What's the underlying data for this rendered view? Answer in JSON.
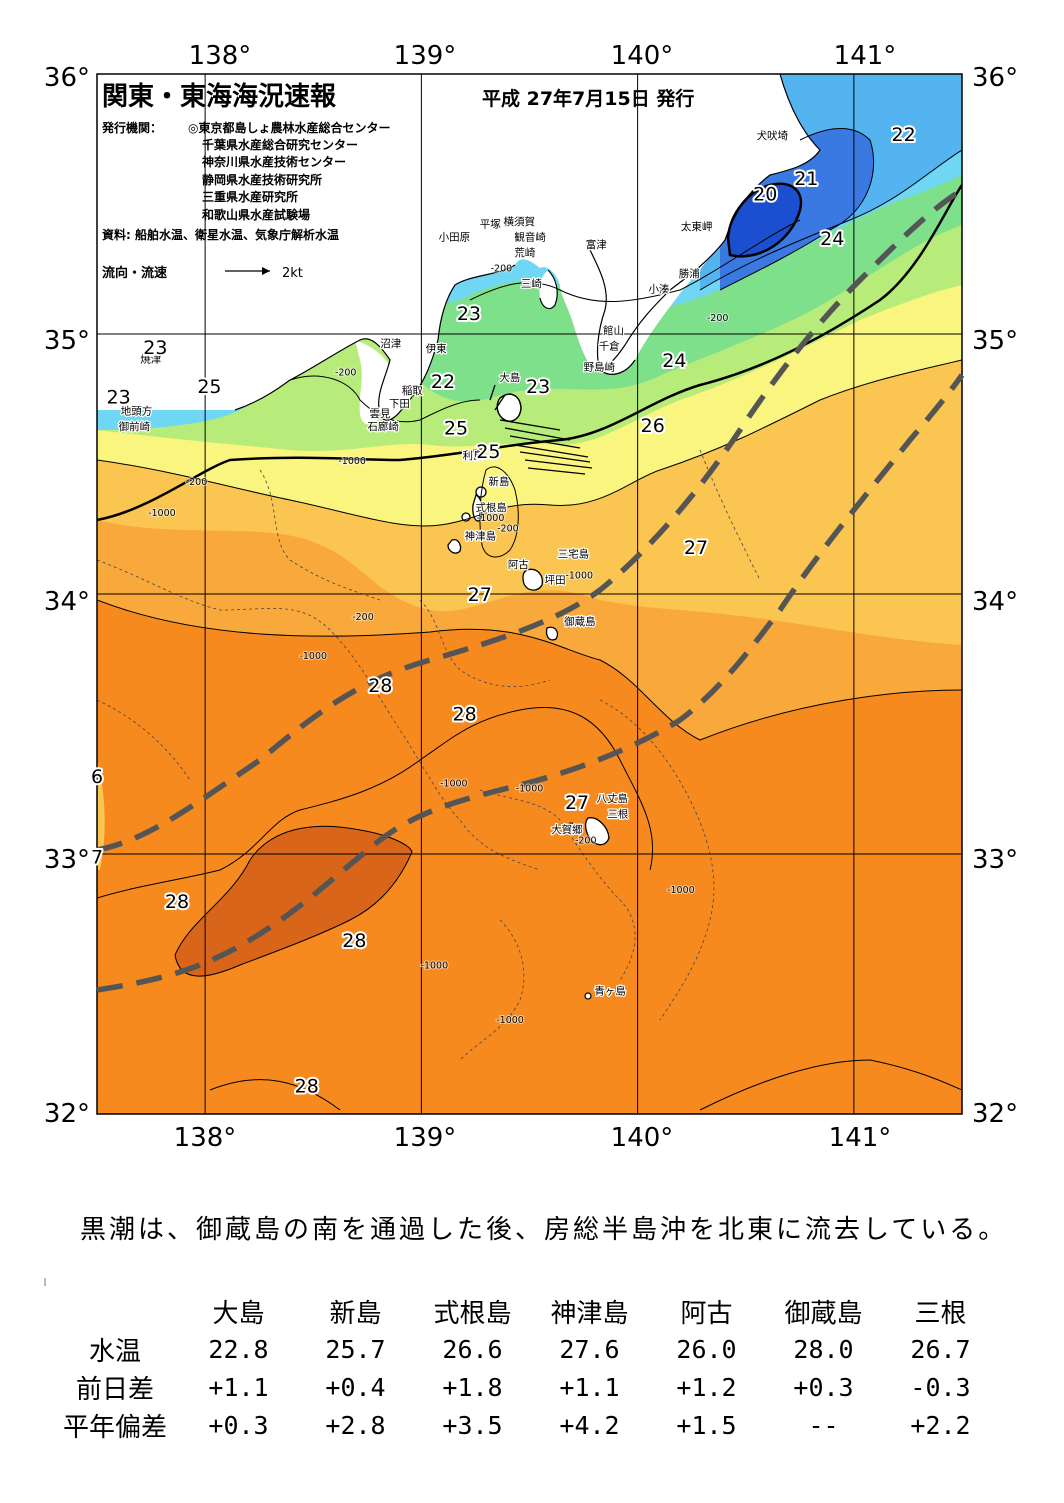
{
  "title": "関東・東海海況速報",
  "issue_date": "平成 27年7月15日 発行",
  "issuers_label": "発行機関：",
  "issuers": [
    "◎東京都島しょ農林水産総合センター",
    "千葉県水産総合研究センター",
    "神奈川県水産技術センター",
    "静岡県水産技術研究所",
    "三重県水産研究所",
    "和歌山県水産試験場"
  ],
  "source": "資料: 船舶水温、衛星水温、気象庁解析水温",
  "current_legend": {
    "label": "流向・流速",
    "scale": "2kt"
  },
  "axes": {
    "lon_labels": [
      "138°",
      "139°",
      "140°",
      "141°"
    ],
    "lat_labels": [
      "36°",
      "35°",
      "34°",
      "33°",
      "32°"
    ],
    "lon_range": [
      137.5,
      141.5
    ],
    "lat_range": [
      32,
      36
    ]
  },
  "colors": {
    "t20": "#1c4fd0",
    "t21": "#3a78e2",
    "t22": "#54b4f0",
    "t23": "#6fd6f4",
    "t24": "#7fe08c",
    "t25": "#b8ec7a",
    "t26": "#f9f57e",
    "t27": "#fbc552",
    "t275": "#f9a93b",
    "t28": "#f78a1e",
    "t285": "#d9651a",
    "kuroshio": "#555555",
    "land": "#ffffff"
  },
  "temp_labels": [
    {
      "t": "22",
      "lon": 141.23,
      "lat": 35.77
    },
    {
      "t": "21",
      "lon": 140.78,
      "lat": 35.6
    },
    {
      "t": "20",
      "lon": 140.59,
      "lat": 35.54
    },
    {
      "t": "24",
      "lon": 140.9,
      "lat": 35.37
    },
    {
      "t": "23",
      "lon": 139.22,
      "lat": 35.08
    },
    {
      "t": "23",
      "lon": 137.77,
      "lat": 34.95
    },
    {
      "t": "25",
      "lon": 138.02,
      "lat": 34.8
    },
    {
      "t": "23",
      "lon": 137.6,
      "lat": 34.76
    },
    {
      "t": "22",
      "lon": 139.1,
      "lat": 34.82
    },
    {
      "t": "23",
      "lon": 139.54,
      "lat": 34.8
    },
    {
      "t": "24",
      "lon": 140.17,
      "lat": 34.9
    },
    {
      "t": "25",
      "lon": 139.16,
      "lat": 34.64
    },
    {
      "t": "26",
      "lon": 140.07,
      "lat": 34.65
    },
    {
      "t": "25",
      "lon": 139.31,
      "lat": 34.55
    },
    {
      "t": "27",
      "lon": 140.27,
      "lat": 34.18
    },
    {
      "t": "27",
      "lon": 139.27,
      "lat": 34.0
    },
    {
      "t": "28",
      "lon": 138.81,
      "lat": 33.65
    },
    {
      "t": "28",
      "lon": 139.2,
      "lat": 33.54
    },
    {
      "t": "6",
      "lon": 137.5,
      "lat": 33.3
    },
    {
      "t": "7",
      "lon": 137.5,
      "lat": 32.99
    },
    {
      "t": "27",
      "lon": 139.72,
      "lat": 33.2
    },
    {
      "t": "28",
      "lon": 137.87,
      "lat": 32.82
    },
    {
      "t": "28",
      "lon": 138.69,
      "lat": 32.67
    },
    {
      "t": "28",
      "lon": 138.47,
      "lat": 32.11
    }
  ],
  "places": [
    {
      "n": "犬吠埼",
      "lon": 140.55,
      "lat": 35.75
    },
    {
      "n": "太東岬",
      "lon": 140.2,
      "lat": 35.4
    },
    {
      "n": "勝浦",
      "lon": 140.19,
      "lat": 35.22
    },
    {
      "n": "小湊",
      "lon": 140.05,
      "lat": 35.16
    },
    {
      "n": "富津",
      "lon": 139.76,
      "lat": 35.33
    },
    {
      "n": "横須賀",
      "lon": 139.38,
      "lat": 35.42
    },
    {
      "n": "平塚",
      "lon": 139.27,
      "lat": 35.41
    },
    {
      "n": "小田原",
      "lon": 139.08,
      "lat": 35.36
    },
    {
      "n": "観音崎",
      "lon": 139.43,
      "lat": 35.36
    },
    {
      "n": "荒崎",
      "lon": 139.43,
      "lat": 35.3
    },
    {
      "n": "三崎",
      "lon": 139.46,
      "lat": 35.18
    },
    {
      "n": "館山",
      "lon": 139.84,
      "lat": 35.0
    },
    {
      "n": "千倉",
      "lon": 139.82,
      "lat": 34.94
    },
    {
      "n": "野島崎",
      "lon": 139.75,
      "lat": 34.86
    },
    {
      "n": "沼津",
      "lon": 138.81,
      "lat": 34.95
    },
    {
      "n": "焼津",
      "lon": 137.7,
      "lat": 34.89
    },
    {
      "n": "伊東",
      "lon": 139.02,
      "lat": 34.93
    },
    {
      "n": "稲取",
      "lon": 138.91,
      "lat": 34.77
    },
    {
      "n": "下田",
      "lon": 138.85,
      "lat": 34.72
    },
    {
      "n": "雲見",
      "lon": 138.76,
      "lat": 34.68
    },
    {
      "n": "石廊崎",
      "lon": 138.75,
      "lat": 34.63
    },
    {
      "n": "地頭方",
      "lon": 137.61,
      "lat": 34.69
    },
    {
      "n": "御前崎",
      "lon": 137.6,
      "lat": 34.63
    },
    {
      "n": "大島",
      "lon": 139.36,
      "lat": 34.82
    },
    {
      "n": "利島",
      "lon": 139.19,
      "lat": 34.52
    },
    {
      "n": "新島",
      "lon": 139.31,
      "lat": 34.42
    },
    {
      "n": "式根島",
      "lon": 139.25,
      "lat": 34.32
    },
    {
      "n": "神津島",
      "lon": 139.2,
      "lat": 34.21
    },
    {
      "n": "三宅島",
      "lon": 139.63,
      "lat": 34.14
    },
    {
      "n": "阿古",
      "lon": 139.4,
      "lat": 34.1
    },
    {
      "n": "坪田",
      "lon": 139.57,
      "lat": 34.04
    },
    {
      "n": "御蔵島",
      "lon": 139.66,
      "lat": 33.88
    },
    {
      "n": "八丈島",
      "lon": 139.81,
      "lat": 33.2
    },
    {
      "n": "三根",
      "lon": 139.86,
      "lat": 33.14
    },
    {
      "n": "大賀郷",
      "lon": 139.6,
      "lat": 33.08
    },
    {
      "n": "青ヶ島",
      "lon": 139.8,
      "lat": 32.46
    }
  ],
  "depth_labels": [
    {
      "t": "-200",
      "lon": 139.37,
      "lat": 35.24
    },
    {
      "t": "-200",
      "lon": 138.65,
      "lat": 34.84
    },
    {
      "t": "-200",
      "lon": 137.96,
      "lat": 34.42
    },
    {
      "t": "-1000",
      "lon": 138.68,
      "lat": 34.5
    },
    {
      "t": "-1000",
      "lon": 137.8,
      "lat": 34.3
    },
    {
      "t": "-1000",
      "lon": 139.32,
      "lat": 34.28
    },
    {
      "t": "-200",
      "lon": 139.4,
      "lat": 34.24
    },
    {
      "t": "-1000",
      "lon": 139.73,
      "lat": 34.06
    },
    {
      "t": "-200",
      "lon": 138.73,
      "lat": 33.9
    },
    {
      "t": "-1000",
      "lon": 138.5,
      "lat": 33.75
    },
    {
      "t": "-1000",
      "lon": 139.15,
      "lat": 33.26
    },
    {
      "t": "-1000",
      "lon": 139.5,
      "lat": 33.24
    },
    {
      "t": "-200",
      "lon": 139.76,
      "lat": 33.04
    },
    {
      "t": "-1000",
      "lon": 140.2,
      "lat": 32.85
    },
    {
      "t": "-1000",
      "lon": 139.06,
      "lat": 32.56
    },
    {
      "t": "-1000",
      "lon": 139.41,
      "lat": 32.35
    },
    {
      "t": "-200",
      "lon": 140.37,
      "lat": 35.05
    }
  ],
  "summary": "黒潮は、御蔵島の南を通過した後、房総半島沖を北東に流去している。",
  "stats": {
    "stations": [
      "大島",
      "新島",
      "式根島",
      "神津島",
      "阿古",
      "御蔵島",
      "三根"
    ],
    "rows": [
      {
        "label": "水温",
        "values": [
          "22.8",
          "25.7",
          "26.6",
          "27.6",
          "26.0",
          "28.0",
          "26.7"
        ]
      },
      {
        "label": "前日差",
        "values": [
          "+1.1",
          "+0.4",
          "+1.8",
          "+1.1",
          "+1.2",
          "+0.3",
          "-0.3"
        ]
      },
      {
        "label": "平年偏差",
        "values": [
          "+0.3",
          "+2.8",
          "+3.5",
          "+4.2",
          "+1.5",
          "--",
          "+2.2"
        ]
      }
    ]
  }
}
